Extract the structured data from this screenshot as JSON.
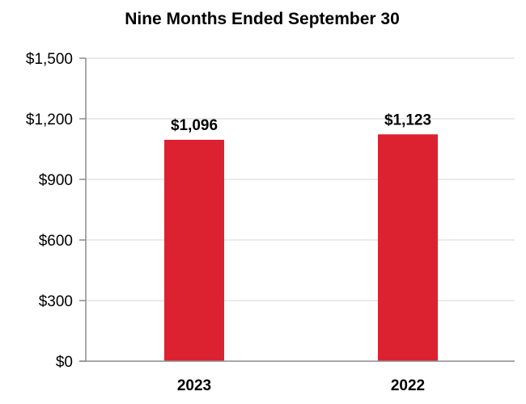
{
  "chart_data": {
    "type": "bar",
    "title": "Nine Months Ended September 30",
    "xlabel": "",
    "ylabel": "",
    "categories": [
      "2023",
      "2022"
    ],
    "values": [
      1096,
      1123
    ],
    "data_labels": [
      "$1,096",
      "$1,123"
    ],
    "yticks": [
      0,
      300,
      600,
      900,
      1200,
      1500
    ],
    "ytick_labels": [
      "$0",
      "$300",
      "$600",
      "$900",
      "$1,200",
      "$1,500"
    ],
    "ylim": [
      0,
      1500
    ],
    "grid": true,
    "legend": "none",
    "bar_color": "#dc2230",
    "grid_color": "#e3e3e3",
    "axis_color": "#8c8c8c"
  }
}
